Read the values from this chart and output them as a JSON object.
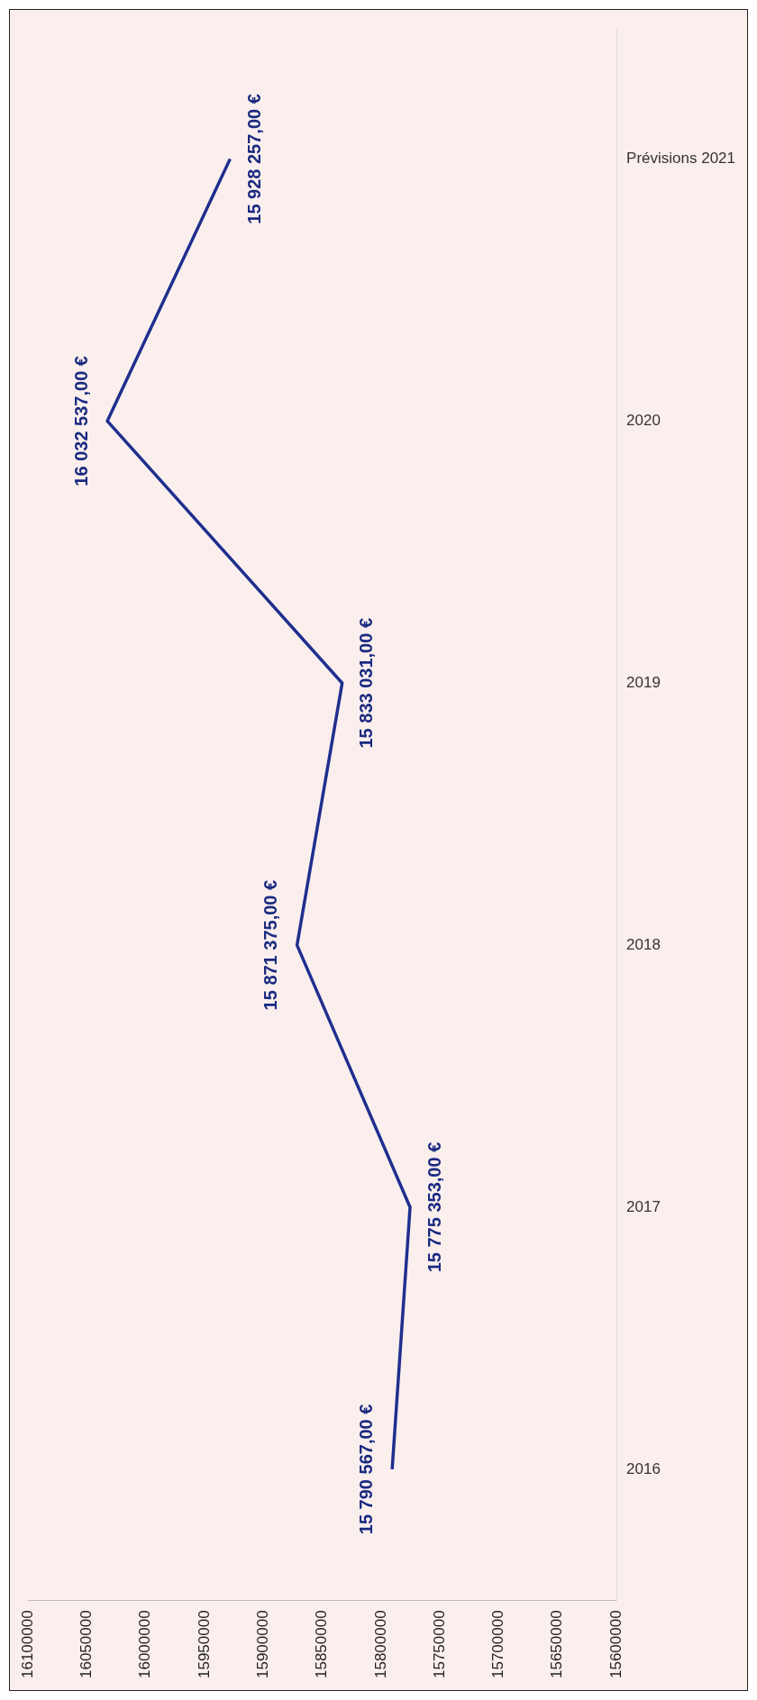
{
  "chart_data": {
    "type": "line",
    "orientation": "horizontal",
    "categories": [
      "Prévisions 2021",
      "2020",
      "2019",
      "2018",
      "2017",
      "2016"
    ],
    "series": [
      {
        "color": "#1f2f8f",
        "values": [
          15928257,
          16032537,
          15833031,
          15871375,
          15775353,
          15790567
        ],
        "value_labels": [
          "15 928 257,00 €",
          "16 032 537,00 €",
          "15 833 031,00 €",
          "15 871 375,00 €",
          "15 775 353,00 €",
          "15 790 567,00 €"
        ]
      }
    ],
    "xlim": [
      16100000,
      15600000
    ],
    "xticks": [
      15600000,
      15650000,
      15700000,
      15750000,
      15800000,
      15850000,
      15900000,
      15950000,
      16000000,
      16050000,
      16100000
    ],
    "grid": false,
    "legend": false,
    "marker": "none",
    "line_style": "solid"
  }
}
